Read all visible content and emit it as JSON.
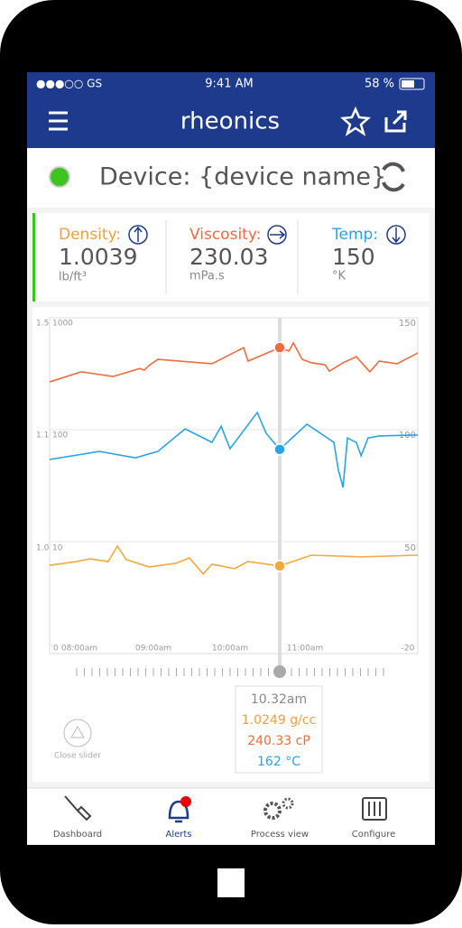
{
  "status_bar": {
    "carrier": "●●●○○ GS",
    "time": "9:41 AM",
    "battery": "58 %"
  },
  "header": {
    "title": "rheonics"
  },
  "device": {
    "label": "Device: {device name}"
  },
  "readings": [
    {
      "label": "Density:",
      "value": "1.0039",
      "unit": "lb/ft³"
    },
    {
      "label": "Viscosity:",
      "value": "230.03",
      "unit": "mPa.s"
    },
    {
      "label": "Temp:",
      "value": "150",
      "unit": "°K"
    }
  ],
  "chart_data": {
    "type": "line",
    "left_labels": [
      [
        "1.5",
        "1000"
      ],
      [
        "1.1",
        "100"
      ],
      [
        "1.0",
        "10"
      ]
    ],
    "right_labels": [
      "150",
      "100",
      "50"
    ],
    "x_labels": [
      "0",
      "08:00am",
      "09:00am",
      "10:00am",
      "11:00am",
      "-20"
    ],
    "xlim": [
      0,
      100
    ],
    "ylim": [
      0,
      100
    ],
    "cursor_x": 62.5,
    "series": [
      {
        "color": "#f26a3d",
        "x": [
          0,
          8.6,
          17.2,
          24.5,
          25.7,
          27.0,
          29.4,
          44.1,
          52.7,
          53.9,
          62.5,
          65.0,
          66.2,
          68.6,
          71.1,
          74.8,
          76.0,
          79.7,
          83.3,
          87.0,
          89.5,
          94.4,
          100
        ],
        "values": [
          80.9,
          83.9,
          82.5,
          84.9,
          84.4,
          85.8,
          87.6,
          86.3,
          91.1,
          87.1,
          91.1,
          90.1,
          92.5,
          87.6,
          86.6,
          86.0,
          84.1,
          86.6,
          88.4,
          83.9,
          87.1,
          86.3,
          89.5
        ]
      },
      {
        "color": "#2aa4e8",
        "x": [
          0,
          13.5,
          23.3,
          29.4,
          36.8,
          44.1,
          46.6,
          49.0,
          56.4,
          58.8,
          62.5,
          69.9,
          77.2,
          78.4,
          79.7,
          80.9,
          83.3,
          84.6,
          86.5,
          89.5,
          100
        ],
        "values": [
          57.8,
          60.2,
          58.3,
          60.2,
          66.9,
          62.9,
          67.7,
          61.0,
          71.8,
          65.6,
          60.8,
          68.3,
          62.9,
          54.8,
          49.5,
          64.2,
          62.9,
          58.9,
          64.2,
          64.8,
          65.1
        ]
      },
      {
        "color": "#f7a83c",
        "x": [
          0,
          7.4,
          11.0,
          15.9,
          18.4,
          20.8,
          27.0,
          34.3,
          38.0,
          41.7,
          44.1,
          50.2,
          53.9,
          62.5,
          71.1,
          84.6,
          100
        ],
        "values": [
          26.3,
          27.4,
          28.2,
          27.4,
          32.0,
          28.0,
          25.8,
          26.9,
          28.5,
          23.7,
          26.6,
          25.3,
          27.4,
          26.1,
          29.3,
          28.8,
          29.3
        ]
      }
    ]
  },
  "tooltip": {
    "time": "10.32am",
    "density": "1.0249 g/cc",
    "viscosity": "240.33 cP",
    "temp": "162 °C"
  },
  "close_slider": "Close slider",
  "tabs": [
    "Dashboard",
    "Alerts",
    "Process view",
    "Configure"
  ]
}
